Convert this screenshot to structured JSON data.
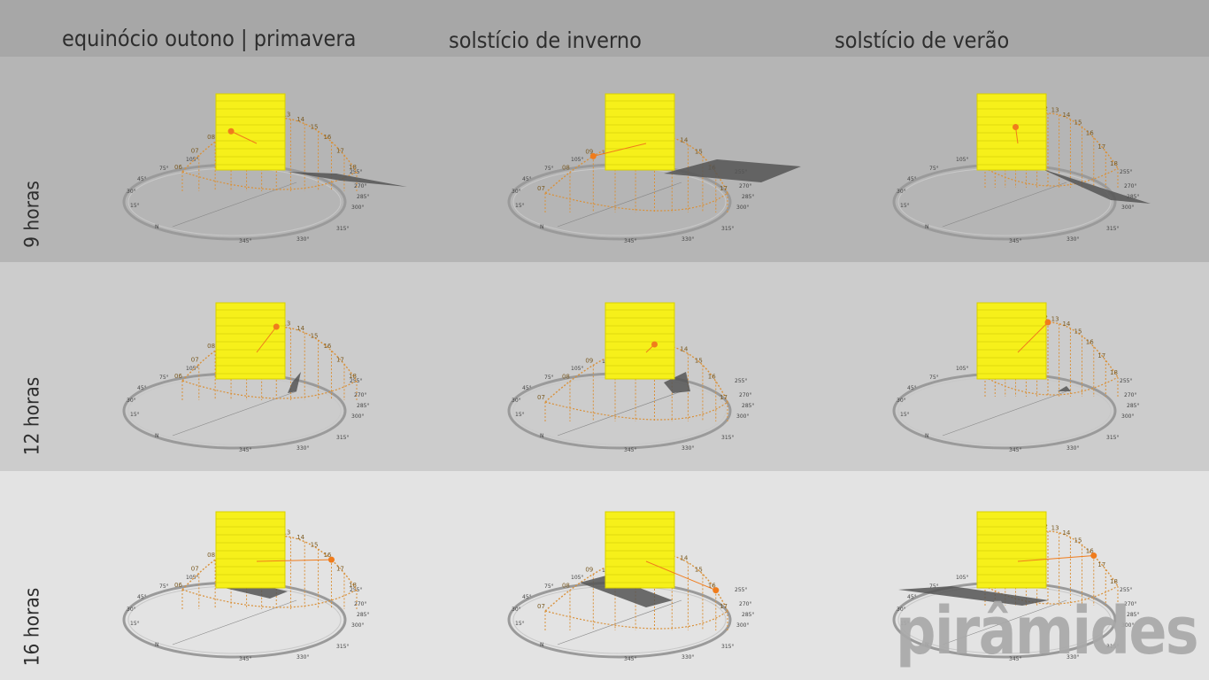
{
  "columns": [
    {
      "title": "equinócio outono | primavera"
    },
    {
      "title": "solstício de inverno"
    },
    {
      "title": "solstício de verão"
    }
  ],
  "rows": [
    {
      "label": "9 horas"
    },
    {
      "label": "12 horas"
    },
    {
      "label": "16 horas"
    }
  ],
  "watermark": "pirâmides",
  "colors": {
    "header": "#a7a7a7",
    "band_9h": "#b5b5b5",
    "band_12h": "#cccccc",
    "band_16h": "#e3e3e3",
    "panel": "#f6f01a",
    "sun_path": "#d9913a",
    "sun": "#f07c1c",
    "shadow": "#555555",
    "ground": "#9a9a9a"
  },
  "hour_ticks": {
    "equinox": [
      "06",
      "07",
      "08",
      "09",
      "10",
      "11",
      "12",
      "13",
      "14",
      "15",
      "16",
      "17",
      "18"
    ],
    "winter": [
      "07",
      "08",
      "09",
      "10",
      "11",
      "12",
      "13",
      "14",
      "15",
      "16",
      "17"
    ],
    "summer": [
      "06",
      "07",
      "08",
      "09",
      "10",
      "11",
      "12",
      "13",
      "14",
      "15",
      "16",
      "17",
      "18"
    ]
  },
  "azimuth_labels": {
    "north": "N",
    "values": [
      "15°",
      "30°",
      "45°",
      "75°",
      "105°",
      "135°",
      "255°",
      "270°",
      "285°",
      "300°",
      "315°",
      "330°",
      "345°"
    ]
  }
}
